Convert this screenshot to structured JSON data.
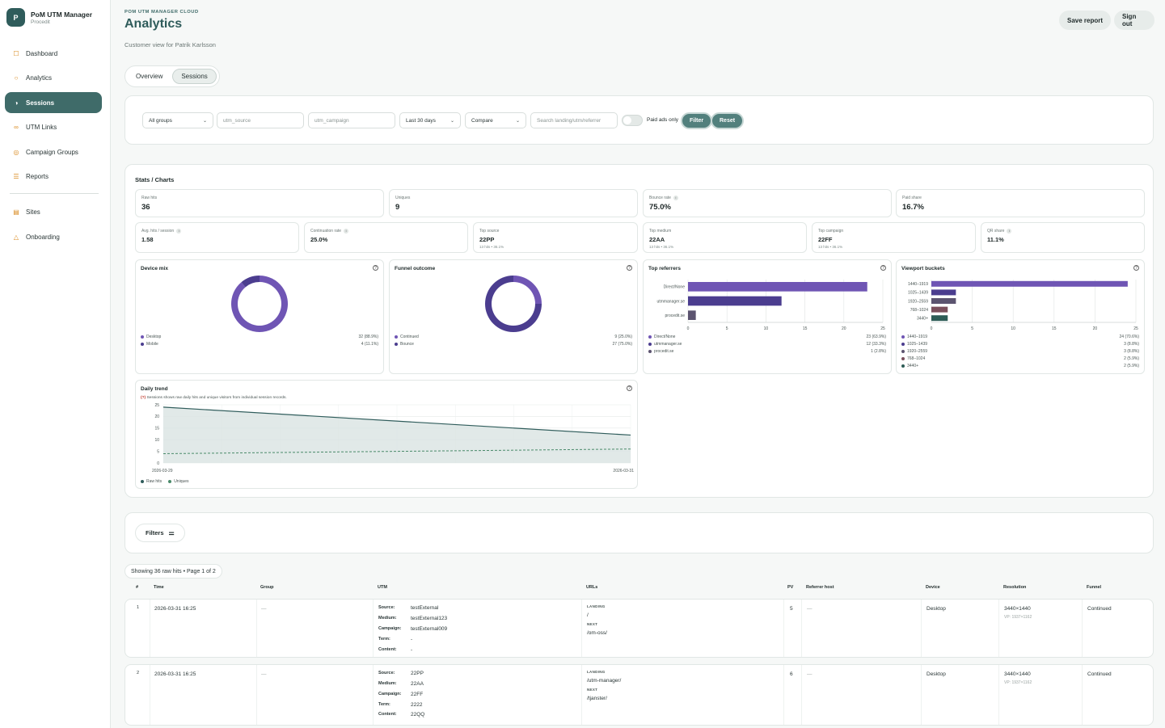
{
  "brand": {
    "logo": "P",
    "name": "PoM UTM Manager",
    "sub": "Procedit"
  },
  "nav": [
    {
      "label": "Dashboard",
      "icon": "square-icon",
      "glyph": "☐"
    },
    {
      "label": "Analytics",
      "icon": "circle-icon",
      "glyph": "○"
    },
    {
      "label": "Sessions",
      "icon": "half-circle-icon",
      "glyph": "◑"
    },
    {
      "label": "UTM Links",
      "icon": "link-icon",
      "glyph": "∞"
    },
    {
      "label": "Campaign Groups",
      "icon": "target-icon",
      "glyph": "◎"
    },
    {
      "label": "Reports",
      "icon": "list-icon",
      "glyph": "☰"
    },
    {
      "label": "Sites",
      "icon": "server-icon",
      "glyph": "▤"
    },
    {
      "label": "Onboarding",
      "icon": "triangle-icon",
      "glyph": "△"
    }
  ],
  "header": {
    "eyebrow": "POM UTM MANAGER CLOUD",
    "title": "Analytics",
    "subtitle": "Customer view for Patrik Karlsson",
    "save": "Save report",
    "signout": "Sign out"
  },
  "tabs": [
    "Overview",
    "Sessions"
  ],
  "filters": {
    "group": "All groups",
    "source_ph": "utm_source",
    "campaign_ph": "utm_campaign",
    "range": "Last 30 days",
    "compare": "Compare",
    "search_ph": "Search landing/utm/referrer",
    "paid": "Paid ads only",
    "filter": "Filter",
    "reset": "Reset"
  },
  "stats": {
    "title": "Stats / Charts",
    "row1": [
      {
        "label": "Raw hits",
        "value": "36"
      },
      {
        "label": "Uniques",
        "value": "9"
      },
      {
        "label": "Bounce rate",
        "value": "75.0%",
        "info": "i"
      },
      {
        "label": "Paid share",
        "value": "16.7%"
      }
    ],
    "row2": [
      {
        "label": "Avg. hits / session",
        "value": "1.58",
        "info": "i"
      },
      {
        "label": "Continuation rate",
        "value": "25.0%",
        "info": "i"
      },
      {
        "label": "Top source",
        "value": "22PP",
        "sub": "13 hits • 36.1%"
      },
      {
        "label": "Top medium",
        "value": "22AA",
        "sub": "13 hits • 36.1%"
      },
      {
        "label": "Top campaign",
        "value": "22FF",
        "sub": "13 hits • 36.1%"
      },
      {
        "label": "QR share",
        "value": "11.1%",
        "info": "i"
      }
    ]
  },
  "panels": {
    "device": {
      "title": "Device mix",
      "legend": [
        {
          "label": "Desktop",
          "value": "32 (88.9%)"
        },
        {
          "label": "Mobile",
          "value": "4 (11.1%)"
        }
      ]
    },
    "funnel": {
      "title": "Funnel outcome",
      "legend": [
        {
          "label": "Continued",
          "value": "9 (25.0%)"
        },
        {
          "label": "Bounce",
          "value": "27 (75.0%)"
        }
      ]
    },
    "referrers": {
      "title": "Top referrers",
      "legend": [
        {
          "label": "Direct/None",
          "value": "23 (63.9%)"
        },
        {
          "label": "utmmanager.se",
          "value": "12 (33.3%)"
        },
        {
          "label": "procedit.se",
          "value": "1 (2.8%)"
        }
      ]
    },
    "viewport": {
      "title": "Viewport buckets",
      "legend": [
        {
          "label": "1440–1919",
          "value": "24 (70.6%)"
        },
        {
          "label": "1025–1439",
          "value": "3 (8.8%)"
        },
        {
          "label": "1920–2559",
          "value": "3 (8.8%)"
        },
        {
          "label": "768–1024",
          "value": "2 (5.9%)"
        },
        {
          "label": "3440+",
          "value": "2 (5.9%)"
        }
      ]
    },
    "trend": {
      "title": "Daily trend",
      "note_mark": "(?)",
      "note": "Sessions shows raw daily hits and unique visitors from individual session records.",
      "legend": [
        "Raw hits",
        "Uniques"
      ]
    }
  },
  "chart_data": [
    {
      "type": "pie",
      "title": "Device mix",
      "labels": [
        "Desktop",
        "Mobile"
      ],
      "values": [
        32,
        4
      ],
      "colors": [
        "#6f55b4",
        "#4b3d8f"
      ]
    },
    {
      "type": "pie",
      "title": "Funnel outcome",
      "labels": [
        "Continued",
        "Bounce"
      ],
      "values": [
        9,
        27
      ],
      "colors": [
        "#6f55b4",
        "#4b3d8f"
      ]
    },
    {
      "type": "bar",
      "orientation": "horizontal",
      "title": "Top referrers",
      "categories": [
        "Direct/None",
        "utmmanager.se",
        "procedit.se"
      ],
      "values": [
        23,
        12,
        1
      ],
      "xlim": [
        0,
        25
      ],
      "ticks": [
        0,
        5,
        10,
        15,
        20,
        25
      ],
      "colors": [
        "#6f55b4",
        "#4b3d8f",
        "#5c5470"
      ]
    },
    {
      "type": "bar",
      "orientation": "horizontal",
      "title": "Viewport buckets",
      "categories": [
        "1440–1919",
        "1025–1439",
        "1920–2559",
        "768–1024",
        "3440+"
      ],
      "values": [
        24,
        3,
        3,
        2,
        2
      ],
      "xlim": [
        0,
        25
      ],
      "ticks": [
        0,
        5,
        10,
        15,
        20,
        25
      ],
      "colors": [
        "#6f55b4",
        "#4b3d8f",
        "#5c5470",
        "#7a4f5c",
        "#2d5c56"
      ]
    },
    {
      "type": "area",
      "title": "Daily trend",
      "x": [
        "2026-03-29",
        "2026-03-31"
      ],
      "series": [
        {
          "name": "Raw hits",
          "values": [
            24,
            12
          ],
          "color": "#2f5c5b"
        },
        {
          "name": "Uniques",
          "values": [
            4,
            6
          ],
          "color": "#4a8a6a"
        }
      ],
      "ylim": [
        0,
        25
      ],
      "yticks": [
        0,
        5,
        10,
        15,
        20,
        25
      ]
    }
  ],
  "table": {
    "filters_btn": "Filters",
    "showing": "Showing 36 raw hits • Page 1 of 2",
    "headers": [
      "#",
      "Time",
      "Group",
      "UTM",
      "URLs",
      "PV",
      "Referrer host",
      "Device",
      "Resolution",
      "Funnel"
    ],
    "utm_labels": [
      "Source:",
      "Medium:",
      "Campaign:",
      "Term:",
      "Content:"
    ],
    "landing_lbl": "LANDING",
    "next_lbl": "NEXT",
    "rows": [
      {
        "n": "1",
        "time": "2026-03-31 16:25",
        "group": "—",
        "utm": [
          "testExternal",
          "testExternal123",
          "testExternal009",
          "-",
          "-"
        ],
        "landing": "/",
        "next": "/om-oss/",
        "pv": "5",
        "ref": "—",
        "device": "Desktop",
        "res": "3440×1440",
        "vp": "VP: 1937×1162",
        "funnel": "Continued"
      },
      {
        "n": "2",
        "time": "2026-03-31 16:25",
        "group": "—",
        "utm": [
          "22PP",
          "22AA",
          "22FF",
          "2222",
          "22QQ"
        ],
        "landing": "/utm-manager/",
        "next": "/tjanster/",
        "pv": "6",
        "ref": "—",
        "device": "Desktop",
        "res": "3440×1440",
        "vp": "VP: 1937×1162",
        "funnel": "Continued"
      }
    ]
  }
}
